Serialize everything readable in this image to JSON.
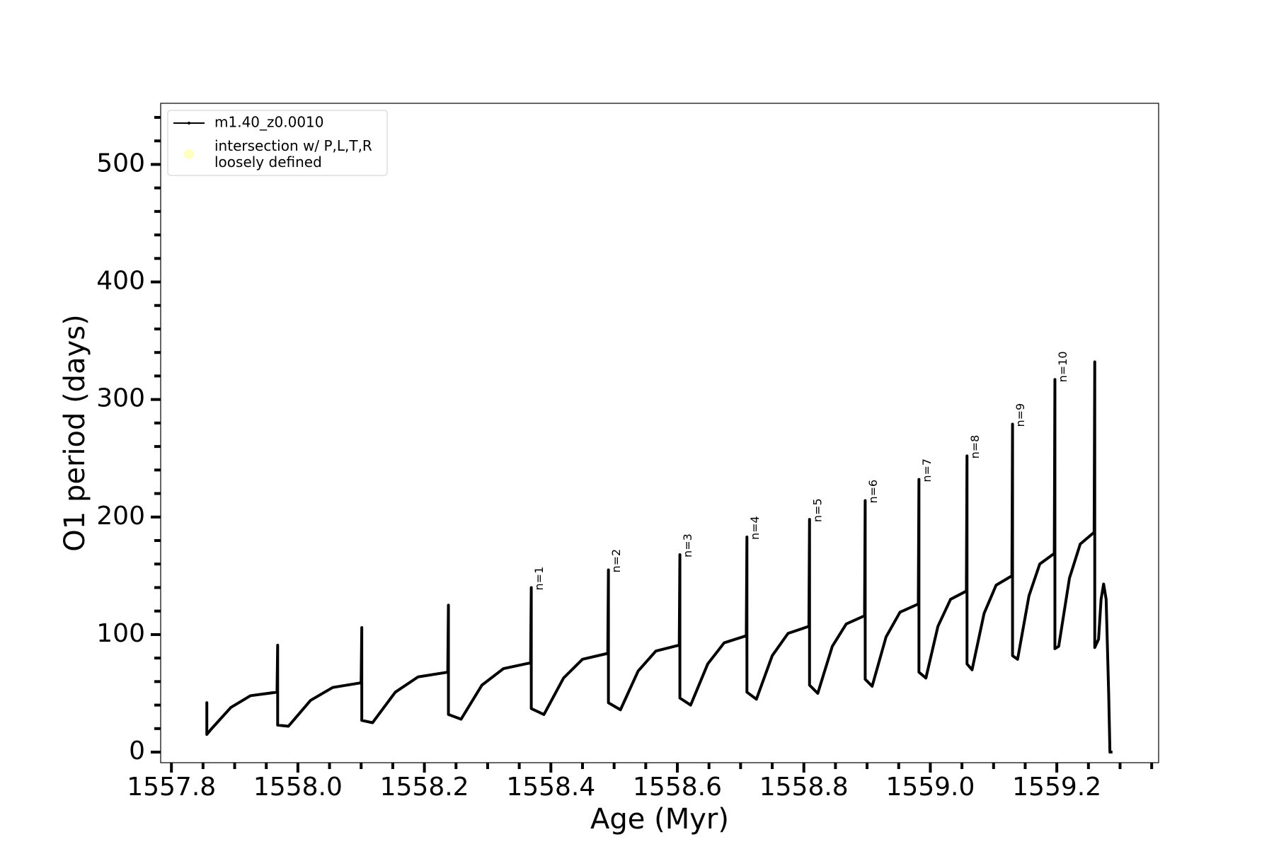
{
  "chart_data": {
    "type": "line",
    "xlabel": "Age (Myr)",
    "ylabel": "O1 period (days)",
    "xlim": [
      1557.783,
      1559.361
    ],
    "ylim": [
      -9,
      552
    ],
    "xticks": [
      1557.8,
      {
        "value": 1558,
        "label": "1558.0"
      },
      1558.2,
      1558.4,
      1558.6,
      1558.8,
      {
        "value": 1559,
        "label": "1559.0"
      },
      1559.2
    ],
    "xminorticks": [
      1557.85,
      1557.9,
      1557.95,
      1558.05,
      1558.1,
      1558.15,
      1558.25,
      1558.3,
      1558.35,
      1558.45,
      1558.5,
      1558.55,
      1558.65,
      1558.7,
      1558.75,
      1558.85,
      1558.9,
      1558.95,
      1559.05,
      1559.1,
      1559.15,
      1559.25,
      1559.3,
      1559.35
    ],
    "yticks": [
      0,
      100,
      200,
      300,
      400,
      500
    ],
    "yminorticks": [
      20,
      40,
      60,
      80,
      120,
      140,
      160,
      180,
      220,
      240,
      260,
      280,
      320,
      340,
      360,
      380,
      420,
      440,
      460,
      480,
      520,
      540
    ],
    "legend": "upper left",
    "series": [
      {
        "name": "m1.40_z0.0010",
        "color": "#000000",
        "x": [
          1557.856,
          1557.856,
          1557.856,
          1557.862,
          1557.894,
          1557.925,
          1557.967,
          1557.968,
          1557.968,
          1557.985,
          1558.02,
          1558.055,
          1558.1,
          1558.101,
          1558.101,
          1558.118,
          1558.154,
          1558.19,
          1558.237,
          1558.238,
          1558.238,
          1558.258,
          1558.291,
          1558.325,
          1558.368,
          1558.369,
          1558.369,
          1558.389,
          1558.42,
          1558.45,
          1558.49,
          1558.491,
          1558.491,
          1558.51,
          1558.538,
          1558.566,
          1558.603,
          1558.604,
          1558.604,
          1558.621,
          1558.648,
          1558.674,
          1558.709,
          1558.71,
          1558.71,
          1558.725,
          1558.75,
          1558.775,
          1558.808,
          1558.809,
          1558.809,
          1558.822,
          1558.845,
          1558.867,
          1558.896,
          1558.897,
          1558.897,
          1558.908,
          1558.93,
          1558.952,
          1558.981,
          1558.982,
          1558.982,
          1558.993,
          1559.012,
          1559.032,
          1559.057,
          1559.058,
          1559.058,
          1559.066,
          1559.085,
          1559.104,
          1559.129,
          1559.13,
          1559.13,
          1559.138,
          1559.156,
          1559.173,
          1559.196,
          1559.197,
          1559.197,
          1559.203,
          1559.22,
          1559.237,
          1559.259,
          1559.26,
          1559.26,
          1559.266,
          1559.27,
          1559.274,
          1559.278,
          1559.282,
          1559.284,
          1559.288
        ],
        "values": [
          30,
          42,
          15,
          19,
          38,
          48,
          51,
          91,
          23,
          22,
          44,
          55,
          59,
          106,
          27,
          25,
          51,
          64,
          68,
          125,
          32,
          28,
          57,
          71,
          76,
          140,
          37,
          32,
          63,
          79,
          84,
          155,
          42,
          36,
          69,
          86,
          91,
          168,
          46,
          40,
          75,
          93,
          99,
          183,
          51,
          45,
          82,
          101,
          107,
          198,
          57,
          50,
          90,
          109,
          116,
          214,
          62,
          56,
          98,
          119,
          126,
          232,
          68,
          63,
          107,
          130,
          137,
          252,
          75,
          70,
          118,
          142,
          150,
          279,
          82,
          79,
          133,
          160,
          169,
          317,
          88,
          90,
          148,
          177,
          187,
          332,
          89,
          96,
          130,
          143,
          130,
          50,
          0,
          0
        ]
      },
      {
        "name": "intersection w/ P,L,T,R\nloosely defined",
        "color": "#ffffc0",
        "marker": "circle",
        "x": [],
        "values": []
      }
    ],
    "annotations": [
      {
        "text": "n=1",
        "x": 1558.369,
        "y": 140
      },
      {
        "text": "n=2",
        "x": 1558.491,
        "y": 155
      },
      {
        "text": "n=3",
        "x": 1558.604,
        "y": 168
      },
      {
        "text": "n=4",
        "x": 1558.71,
        "y": 183
      },
      {
        "text": "n=5",
        "x": 1558.809,
        "y": 198
      },
      {
        "text": "n=6",
        "x": 1558.897,
        "y": 214
      },
      {
        "text": "n=7",
        "x": 1558.982,
        "y": 232
      },
      {
        "text": "n=8",
        "x": 1559.058,
        "y": 252
      },
      {
        "text": "n=9",
        "x": 1559.13,
        "y": 279
      },
      {
        "text": "n=10",
        "x": 1559.197,
        "y": 317
      }
    ]
  }
}
